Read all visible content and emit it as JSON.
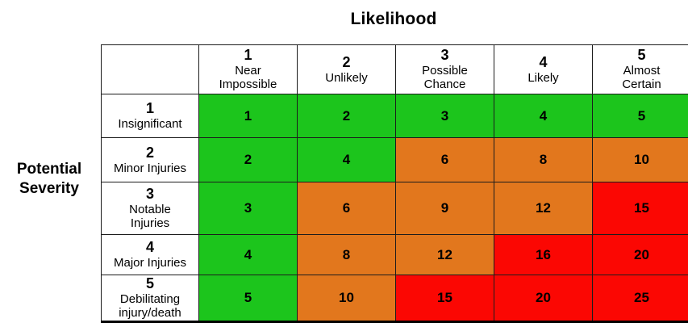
{
  "title": "Likelihood",
  "y_axis_label": "Potential\nSeverity",
  "colors": {
    "green": "#1cc51c",
    "orange": "#e2771d",
    "red": "#fb0703"
  },
  "matrix": {
    "columns": [
      {
        "number": "1",
        "label": "Near\nImpossible"
      },
      {
        "number": "2",
        "label": "Unlikely"
      },
      {
        "number": "3",
        "label": "Possible\nChance"
      },
      {
        "number": "4",
        "label": "Likely"
      },
      {
        "number": "5",
        "label": "Almost\nCertain"
      }
    ],
    "rows": [
      {
        "number": "1",
        "label": "Insignificant",
        "cells": [
          {
            "value": "1",
            "level": "green"
          },
          {
            "value": "2",
            "level": "green"
          },
          {
            "value": "3",
            "level": "green"
          },
          {
            "value": "4",
            "level": "green"
          },
          {
            "value": "5",
            "level": "green"
          }
        ]
      },
      {
        "number": "2",
        "label": "Minor Injuries",
        "cells": [
          {
            "value": "2",
            "level": "green"
          },
          {
            "value": "4",
            "level": "green"
          },
          {
            "value": "6",
            "level": "orange"
          },
          {
            "value": "8",
            "level": "orange"
          },
          {
            "value": "10",
            "level": "orange"
          }
        ]
      },
      {
        "number": "3",
        "label": "Notable\nInjuries",
        "cells": [
          {
            "value": "3",
            "level": "green"
          },
          {
            "value": "6",
            "level": "orange"
          },
          {
            "value": "9",
            "level": "orange"
          },
          {
            "value": "12",
            "level": "orange"
          },
          {
            "value": "15",
            "level": "red"
          }
        ]
      },
      {
        "number": "4",
        "label": "Major Injuries",
        "cells": [
          {
            "value": "4",
            "level": "green"
          },
          {
            "value": "8",
            "level": "orange"
          },
          {
            "value": "12",
            "level": "orange"
          },
          {
            "value": "16",
            "level": "red"
          },
          {
            "value": "20",
            "level": "red"
          }
        ]
      },
      {
        "number": "5",
        "label": "Debilitating\ninjury/death",
        "cells": [
          {
            "value": "5",
            "level": "green"
          },
          {
            "value": "10",
            "level": "orange"
          },
          {
            "value": "15",
            "level": "red"
          },
          {
            "value": "20",
            "level": "red"
          },
          {
            "value": "25",
            "level": "red"
          }
        ]
      }
    ]
  }
}
